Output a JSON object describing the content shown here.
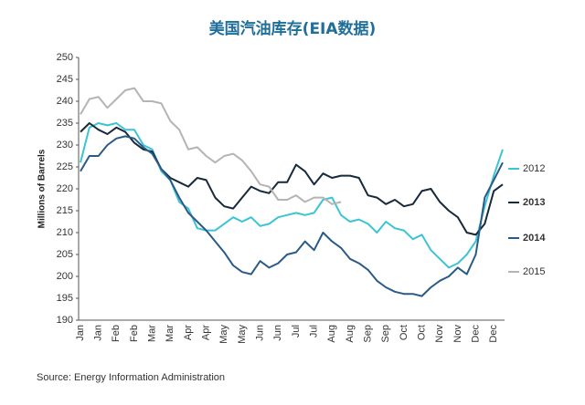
{
  "chart_data": {
    "type": "line",
    "title": "美国汽油库存(EIA数据)",
    "y_label": "Millions of Barrels",
    "source": "Source: Energy Information Administration",
    "categories": [
      "Jan",
      null,
      "Jan",
      null,
      "Feb",
      null,
      "Feb",
      null,
      "Mar",
      null,
      "Mar",
      null,
      "Apr",
      null,
      "Apr",
      null,
      "May",
      null,
      "May",
      null,
      "Jun",
      null,
      "Jun",
      null,
      "Jul",
      null,
      "Jul",
      null,
      "Aug",
      null,
      "Aug",
      null,
      "Sep",
      null,
      "Sep",
      null,
      "Oct",
      null,
      "Oct",
      null,
      "Nov",
      null,
      "Nov",
      null,
      "Dec",
      null,
      "Dec",
      null
    ],
    "series": [
      {
        "name": "2012",
        "color": "#3cc4d4",
        "values": [
          226,
          234,
          235,
          234.5,
          235,
          233.5,
          233.5,
          230,
          229,
          224,
          222,
          217,
          215.5,
          211,
          210.5,
          210.5,
          212,
          213.5,
          212.5,
          213.5,
          211.5,
          212,
          213.5,
          214,
          214.5,
          214,
          214.5,
          217.5,
          218,
          214,
          212.5,
          213,
          212,
          210,
          212.5,
          211,
          210.5,
          208.5,
          209.5,
          206,
          204,
          202,
          203,
          205,
          208,
          216,
          223,
          229
        ]
      },
      {
        "name": "2013",
        "color": "#17293a",
        "values": [
          233,
          235,
          233.5,
          232.5,
          234,
          233,
          230.5,
          229,
          228.5,
          224.5,
          222.5,
          221.5,
          220.5,
          222.5,
          222,
          218,
          216,
          215.5,
          218,
          220.5,
          219.5,
          219,
          221.5,
          221.5,
          225.5,
          224,
          221,
          223.5,
          222.5,
          223,
          223,
          222.5,
          218.5,
          218,
          216.5,
          217.5,
          216,
          216.5,
          219.5,
          220,
          217,
          215,
          213.5,
          210,
          209.5,
          212,
          219.5,
          221
        ]
      },
      {
        "name": "2014",
        "color": "#2c5a87",
        "values": [
          224,
          227.5,
          227.5,
          230,
          231.5,
          232,
          231.5,
          229.5,
          228,
          224.5,
          222,
          218,
          214.5,
          212.5,
          210.5,
          208,
          205.5,
          202.5,
          201,
          200.5,
          203.5,
          202,
          203,
          205,
          205.5,
          208,
          206,
          210,
          208,
          206.5,
          204,
          203,
          201.5,
          199,
          197.5,
          196.5,
          196,
          196,
          195.5,
          197.5,
          199,
          200,
          202,
          200.5,
          205,
          218,
          222,
          226
        ]
      },
      {
        "name": "2015",
        "color": "#b4b4b4",
        "values": [
          237,
          240.5,
          241,
          238.5,
          240.5,
          242.5,
          243,
          240,
          240,
          239.5,
          235.5,
          233.5,
          229,
          229.5,
          227.5,
          226,
          227.5,
          228,
          226.5,
          224,
          221,
          220.5,
          217.5,
          217.5,
          218.5,
          217,
          218,
          218,
          216.5,
          217,
          null,
          null,
          null,
          null,
          null,
          null,
          null,
          null,
          null,
          null,
          null,
          null,
          null,
          null,
          null,
          null,
          null,
          null
        ]
      }
    ],
    "ylim": [
      190,
      250
    ],
    "yticks": [
      190,
      195,
      200,
      205,
      210,
      215,
      220,
      225,
      230,
      235,
      240,
      245,
      250
    ],
    "grid": false
  }
}
